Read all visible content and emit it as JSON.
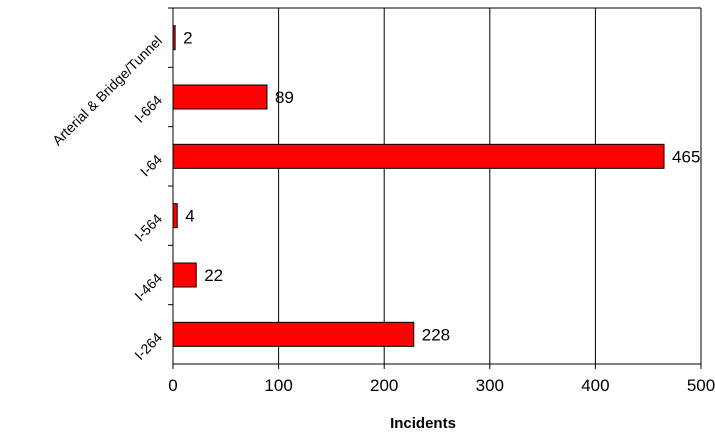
{
  "chart_data": {
    "type": "bar",
    "orientation": "horizontal",
    "categories": [
      "Arterial & Bridge/Tunnel",
      "I-664",
      "I-64",
      "I-564",
      "I-464",
      "I-264"
    ],
    "values": [
      2,
      89,
      465,
      4,
      22,
      228
    ],
    "value_labels": [
      "2",
      "89",
      "465",
      "4",
      "22",
      "228"
    ],
    "xlabel": "Incidents",
    "ylabel": "",
    "xlim": [
      0,
      500
    ],
    "xticks": [
      0,
      100,
      200,
      300,
      400,
      500
    ],
    "xtick_labels": [
      "0",
      "100",
      "200",
      "300",
      "400",
      "500"
    ],
    "grid": "vertical",
    "legend": "none",
    "colors": {
      "bar_fill": "#ff0000",
      "bar_stroke": "#000000",
      "grid": "#000000"
    }
  }
}
